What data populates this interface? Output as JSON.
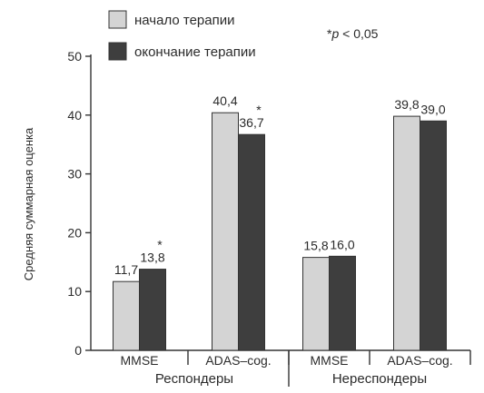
{
  "chart_data": {
    "type": "bar",
    "title": "",
    "xlabel": "",
    "ylabel": "Средняя суммарная оценка",
    "ylim": [
      0,
      50
    ],
    "yticks": [
      0,
      10,
      20,
      30,
      40,
      50
    ],
    "grid": false,
    "legend_position": "top-left",
    "note": "*p < 0,05",
    "categories": [
      "MMSE",
      "ADAS–cog.",
      "MMSE",
      "ADAS–cog."
    ],
    "groups": [
      {
        "label": "Респондеры",
        "categories": [
          "MMSE",
          "ADAS–cog."
        ]
      },
      {
        "label": "Нереспондеры",
        "categories": [
          "MMSE",
          "ADAS–cog."
        ]
      }
    ],
    "series": [
      {
        "name": "начало терапии",
        "color": "#d4d4d4",
        "values": [
          11.7,
          40.4,
          15.8,
          39.8
        ],
        "labels": [
          "11,7",
          "40,4",
          "15,8",
          "39,8"
        ],
        "significant": [
          false,
          false,
          false,
          false
        ]
      },
      {
        "name": "окончание терапии",
        "color": "#3e3e3e",
        "values": [
          13.8,
          36.7,
          16.0,
          39.0
        ],
        "labels": [
          "13,8",
          "36,7",
          "16,0",
          "39,0"
        ],
        "significant": [
          true,
          true,
          false,
          false
        ]
      }
    ]
  }
}
